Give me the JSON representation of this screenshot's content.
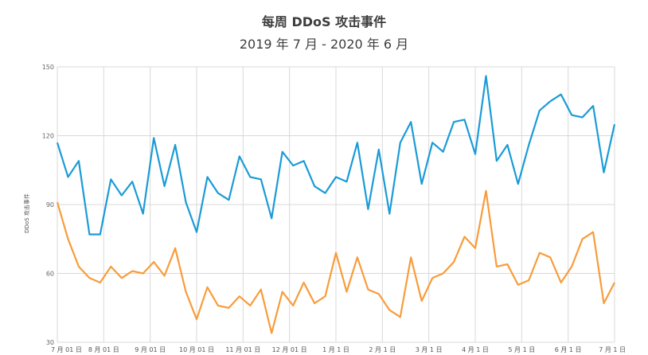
{
  "chart_data": {
    "type": "line",
    "title": "每周 DDoS 攻击事件",
    "subtitle": "2019 年 7 月 - 2020 年 6 月",
    "ylabel": "DDoS 攻击事件",
    "xlabel": "",
    "ylim": [
      30,
      150
    ],
    "yticks": [
      30,
      60,
      90,
      120,
      150
    ],
    "grid": true,
    "x_tick_labels": [
      "7 月 01 日",
      "8 月 01 日",
      "9 月 01 日",
      "10 月 01 日",
      "11 月 01 日",
      "12 月 01 日",
      "1 月 1 日",
      "2 月 1 日",
      "3 月 1 日",
      "4 月 1 日",
      "5 月 1 日",
      "6 月 1 日",
      "7 月 1 日"
    ],
    "series": [
      {
        "color": "#1a9bd7",
        "values": [
          117,
          102,
          109,
          77,
          77,
          101,
          94,
          100,
          86,
          119,
          98,
          116,
          91,
          78,
          102,
          95,
          92,
          111,
          102,
          101,
          84,
          113,
          107,
          109,
          98,
          95,
          102,
          100,
          117,
          88,
          114,
          86,
          117,
          126,
          99,
          117,
          113,
          126,
          127,
          112,
          146,
          109,
          116,
          99,
          116,
          131,
          135,
          138,
          129,
          128,
          133,
          104,
          125
        ]
      },
      {
        "color": "#f89c3a",
        "values": [
          91,
          75,
          63,
          58,
          56,
          63,
          58,
          61,
          60,
          65,
          59,
          71,
          52,
          40,
          54,
          46,
          45,
          50,
          46,
          53,
          34,
          52,
          46,
          56,
          47,
          50,
          69,
          52,
          67,
          53,
          51,
          44,
          41,
          67,
          48,
          58,
          60,
          65,
          76,
          71,
          96,
          63,
          64,
          55,
          57,
          69,
          67,
          56,
          63,
          75,
          78,
          47,
          56
        ]
      }
    ]
  }
}
